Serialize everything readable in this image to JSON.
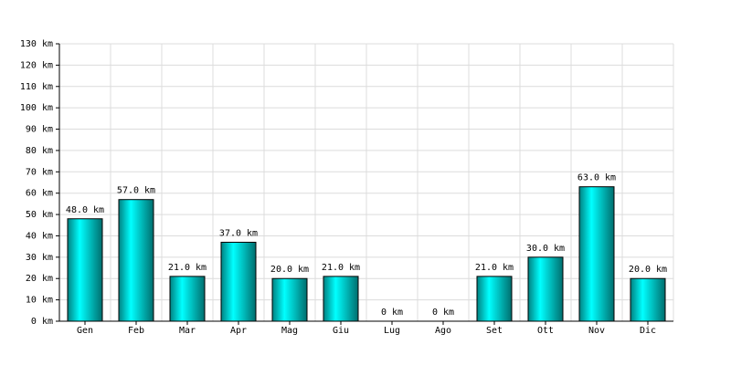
{
  "chart_data": {
    "type": "bar",
    "categories": [
      "Gen",
      "Feb",
      "Mar",
      "Apr",
      "Mag",
      "Giu",
      "Lug",
      "Ago",
      "Set",
      "Ott",
      "Nov",
      "Dic"
    ],
    "values": [
      48,
      57,
      21,
      37,
      20,
      21,
      0,
      0,
      21,
      30,
      63,
      20
    ],
    "value_labels": [
      "48.0 km",
      "57.0 km",
      "21.0 km",
      "37.0 km",
      "20.0 km",
      "21.0 km",
      "0 km",
      "0 km",
      "21.0 km",
      "30.0 km",
      "63.0 km",
      "20.0 km"
    ],
    "color": "#00cccc",
    "ylim": [
      0,
      130
    ],
    "yticks": [
      {
        "value": 0,
        "label": "0 km"
      },
      {
        "value": 10,
        "label": "10 km"
      },
      {
        "value": 20,
        "label": "20 km"
      },
      {
        "value": 30,
        "label": "30 km"
      },
      {
        "value": 40,
        "label": "40 km"
      },
      {
        "value": 50,
        "label": "50 km"
      },
      {
        "value": 60,
        "label": "60 km"
      },
      {
        "value": 70,
        "label": "70 km"
      },
      {
        "value": 80,
        "label": "80 km"
      },
      {
        "value": 90,
        "label": "90 km"
      },
      {
        "value": 100,
        "label": "100 km"
      },
      {
        "value": 110,
        "label": "110 km"
      },
      {
        "value": 120,
        "label": "120 km"
      },
      {
        "value": 130,
        "label": "130 km"
      }
    ],
    "grid": true
  }
}
